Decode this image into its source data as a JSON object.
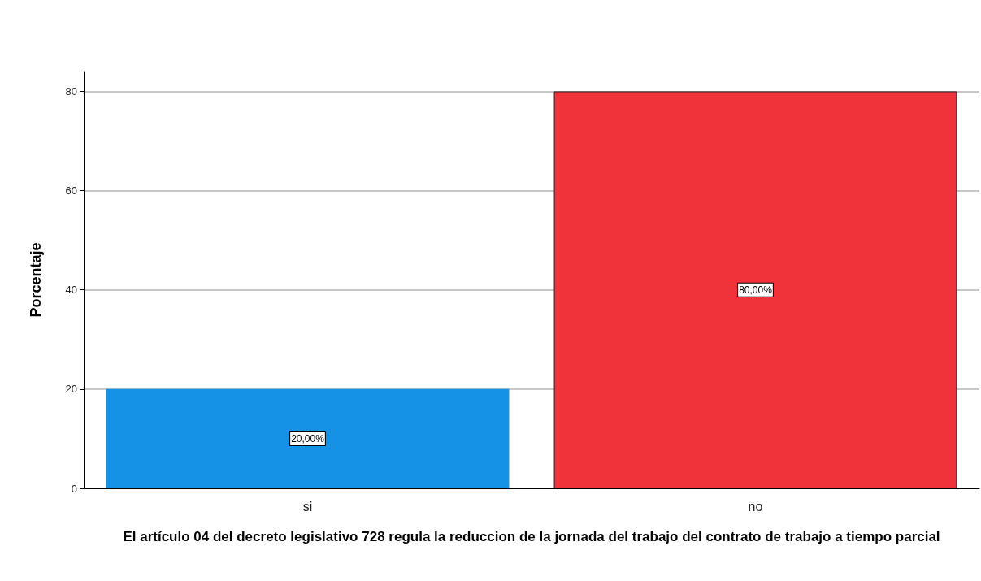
{
  "chart_data": {
    "type": "bar",
    "xlabel": "El artículo 04 del decreto legislativo 728 regula la reduccion de la jornada del trabajo del contrato de trabajo a tiempo parcial",
    "ylabel": "Porcentaje",
    "categories": [
      "si",
      "no"
    ],
    "values": [
      20,
      80
    ],
    "colors": [
      "#1591e6",
      "#f0323a"
    ],
    "value_labels": [
      "20,00%",
      "80,00%"
    ],
    "ylim": [
      0,
      84
    ],
    "yticks": [
      0,
      20,
      40,
      60,
      80
    ],
    "grid": "y"
  }
}
